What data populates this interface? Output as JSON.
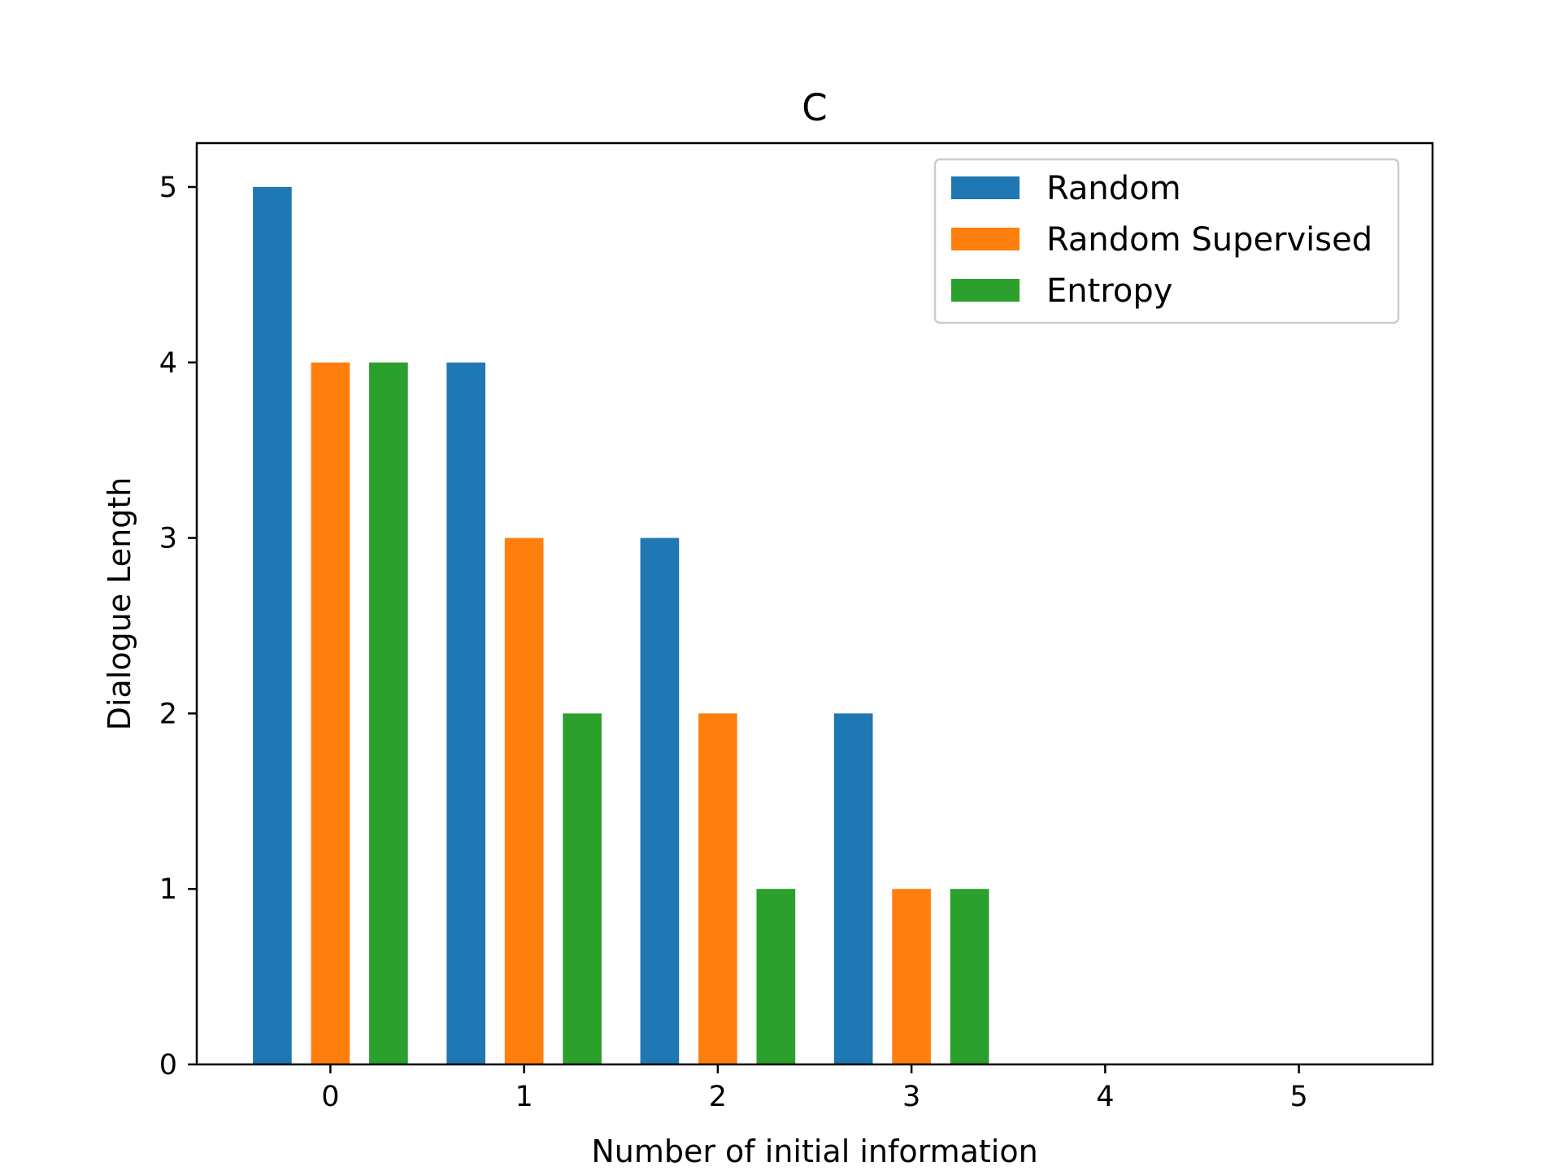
{
  "chart_data": {
    "type": "bar",
    "title": "C",
    "xlabel": "Number of initial information",
    "ylabel": "Dialogue Length",
    "categories": [
      "0",
      "1",
      "2",
      "3",
      "4",
      "5"
    ],
    "x_ticks": [
      "0",
      "1",
      "2",
      "3",
      "4",
      "5"
    ],
    "y_ticks": [
      "0",
      "1",
      "2",
      "3",
      "4",
      "5"
    ],
    "xlim": [
      -0.69,
      5.69
    ],
    "ylim": [
      0,
      5.25
    ],
    "grid": false,
    "legend_position": "top-right",
    "series": [
      {
        "name": "Random",
        "color": "#1f77b4",
        "values": [
          5,
          4,
          3,
          2,
          0,
          0
        ]
      },
      {
        "name": "Random Supervised",
        "color": "#ff7f0e",
        "values": [
          4,
          3,
          2,
          1,
          0,
          0
        ]
      },
      {
        "name": "Entropy",
        "color": "#2ca02c",
        "values": [
          4,
          2,
          1,
          1,
          0,
          0
        ]
      }
    ]
  }
}
